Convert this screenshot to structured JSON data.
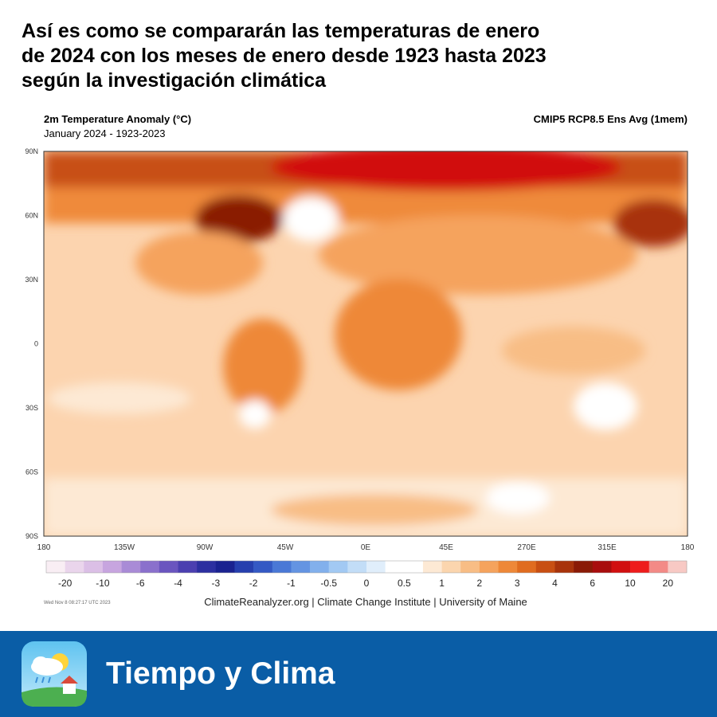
{
  "header": {
    "title_lines": [
      "Así es como se compararán las temperaturas de enero",
      "de 2024 con los meses de enero desde 1923 hasta 2023",
      "según la investigación climática"
    ]
  },
  "map": {
    "title": "2m Temperature Anomaly (°C)",
    "subtitle": "January 2024 - 1923-2023",
    "model": "CMIP5 RCP8.5 Ens Avg (1mem)",
    "lat_labels": [
      "90N",
      "60N",
      "30N",
      "0",
      "30S",
      "60S",
      "90S"
    ],
    "lon_labels": [
      "180",
      "135W",
      "90W",
      "45W",
      "0E",
      "45E",
      "270E",
      "315E",
      "180"
    ],
    "colorbar": {
      "labels": [
        "-20",
        "-10",
        "-6",
        "-4",
        "-3",
        "-2",
        "-1",
        "-0.5",
        "0",
        "0.5",
        "1",
        "2",
        "3",
        "4",
        "6",
        "10",
        "20"
      ],
      "colors": [
        "#f9eef4",
        "#ead5ec",
        "#dbbfe6",
        "#c7a5df",
        "#a98bd6",
        "#8a70cc",
        "#6a55bf",
        "#4b3fb0",
        "#2c2fa0",
        "#1a2290",
        "#263fae",
        "#3459c4",
        "#4a78d6",
        "#6494e2",
        "#82b0ec",
        "#a2c9f3",
        "#c2ddf7",
        "#e0eefb",
        "#ffffff",
        "#ffffff",
        "#fde9d4",
        "#fbd5ae",
        "#f8bd85",
        "#f5a35d",
        "#ee8838",
        "#e06c1f",
        "#c84f12",
        "#a8330b",
        "#8a1a06",
        "#a80d0d",
        "#d10f10",
        "#ee1c1c",
        "#f38a86",
        "#f8c9c4"
      ]
    },
    "timestamp": "Wed Nov  8 08:27:17 UTC 2023",
    "credit": "ClimateReanalyzer.org | Climate Change Institute | University of Maine"
  },
  "footer": {
    "brand": "Tiempo y Clima"
  }
}
